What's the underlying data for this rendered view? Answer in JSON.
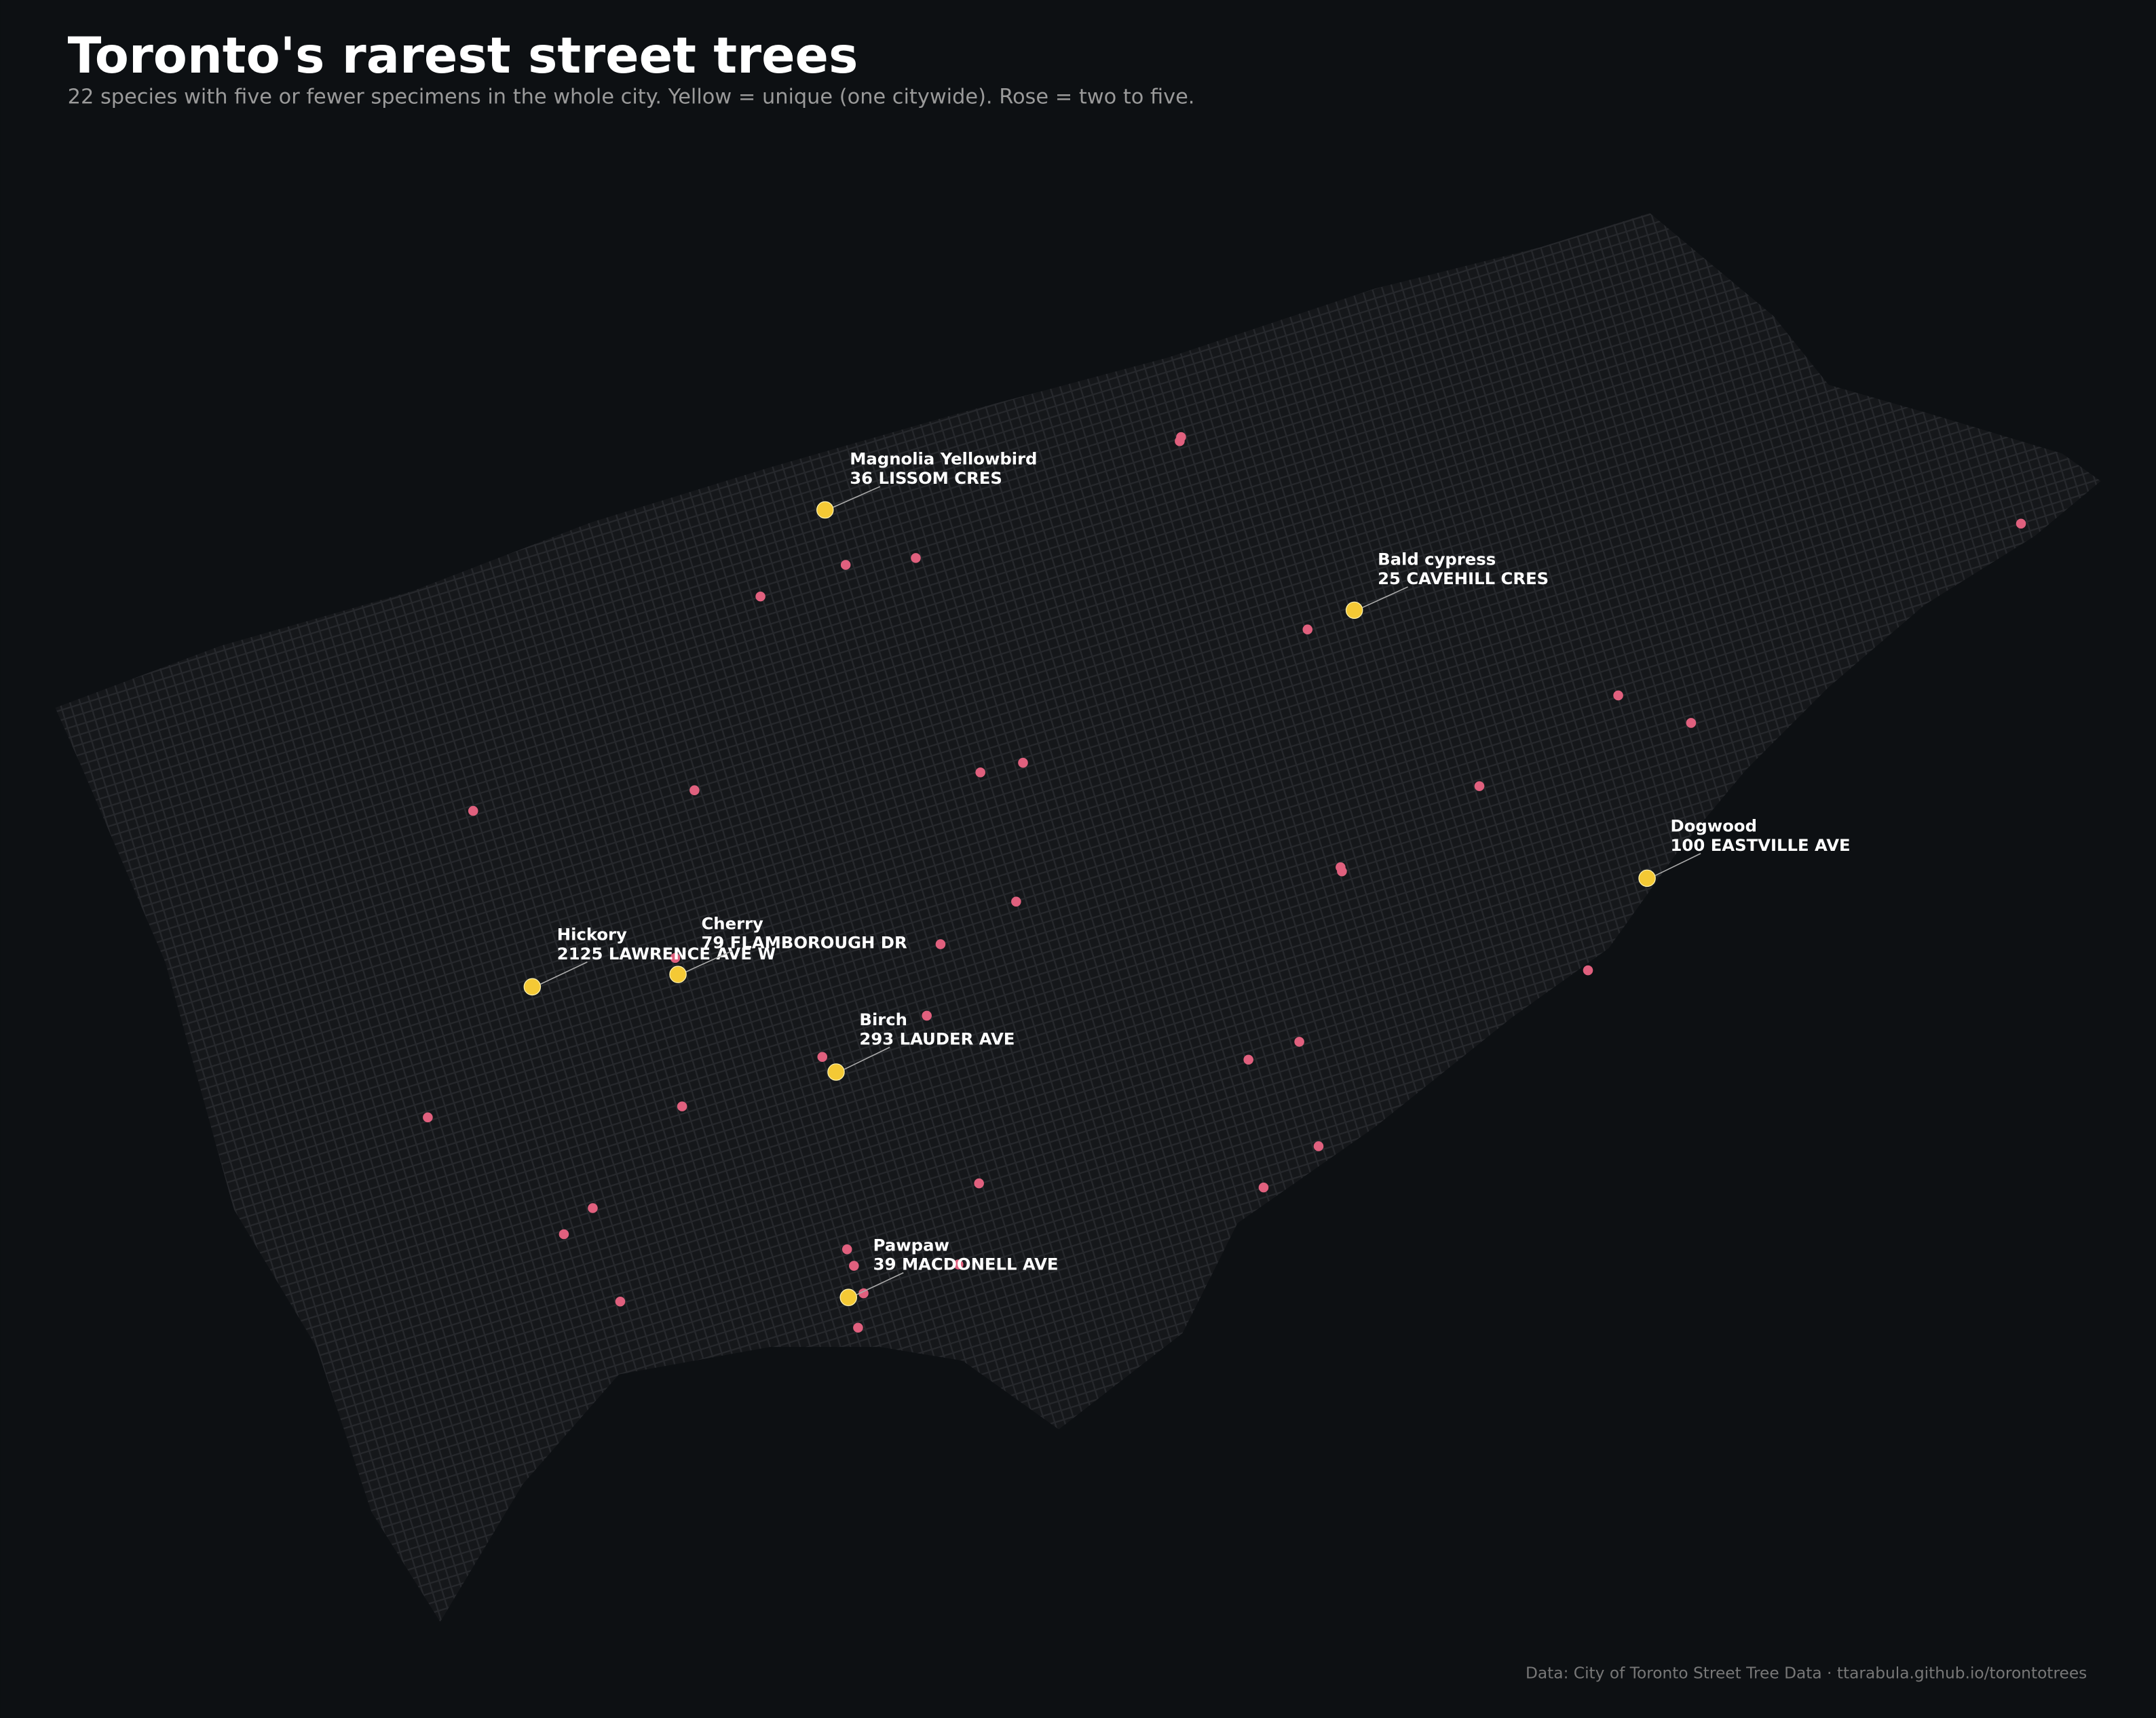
{
  "header": {
    "title": "Toronto's rarest street trees",
    "subtitle": "22 species with five or fewer specimens in the whole city.  Yellow = unique (one citywide). Rose = two to five."
  },
  "annotations": [
    {
      "name": "Magnolia Yellowbird",
      "address": "36 LISSOM CRES"
    },
    {
      "name": "Bald cypress",
      "address": "25 CAVEHILL CRES"
    },
    {
      "name": "Dogwood",
      "address": "100 EASTVILLE AVE"
    },
    {
      "name": "Hickory",
      "address": "2125 LAWRENCE AVE W"
    },
    {
      "name": "Cherry",
      "address": "79 FLAMBOROUGH DR"
    },
    {
      "name": "Birch",
      "address": "293 LAUDER AVE"
    },
    {
      "name": "Pawpaw",
      "address": "39 MACDONELL AVE"
    }
  ],
  "footer": "Data: City of Toronto Street Tree Data  ·  ttarabula.github.io/torontotrees"
}
